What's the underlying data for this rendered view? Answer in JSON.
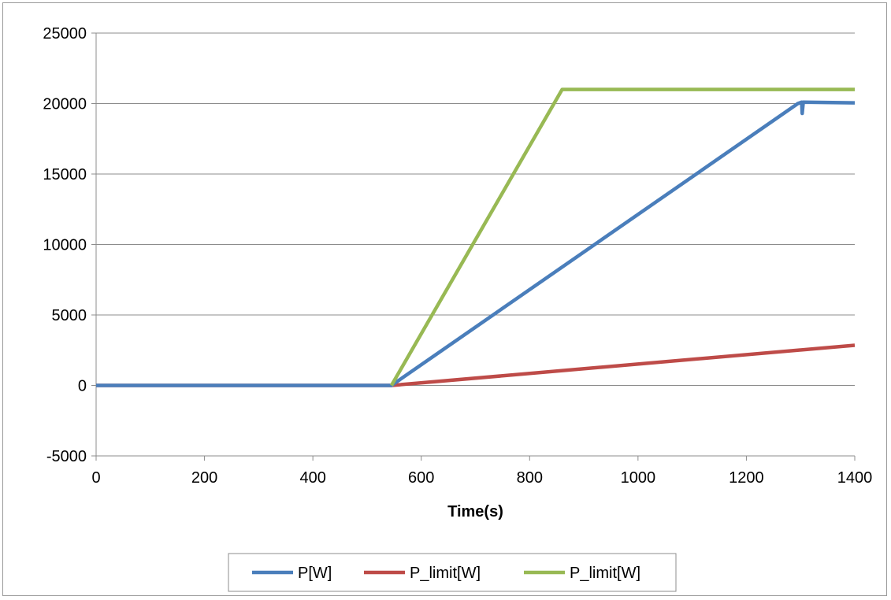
{
  "chart_data": {
    "type": "line",
    "title": "",
    "xlabel": "Time(s)",
    "ylabel": "",
    "xlim": [
      0,
      1400
    ],
    "ylim": [
      -5000,
      25000
    ],
    "x_ticks": [
      0,
      200,
      400,
      600,
      800,
      1000,
      1200,
      1400
    ],
    "y_ticks": [
      -5000,
      0,
      5000,
      10000,
      15000,
      20000,
      25000
    ],
    "x_tick_labels": [
      "0",
      "200",
      "400",
      "600",
      "800",
      "1000",
      "1200",
      "1400"
    ],
    "y_tick_labels": [
      "-5000",
      "0",
      "5000",
      "10000",
      "15000",
      "20000",
      "25000"
    ],
    "grid": "horizontal",
    "legend_position": "bottom",
    "series": [
      {
        "name": "P[W]",
        "color": "#4a7ebb",
        "x": [
          0,
          545,
          1295,
          1302,
          1303,
          1305,
          1400
        ],
        "y": [
          0,
          0,
          20000,
          20100,
          19300,
          20100,
          20050
        ]
      },
      {
        "name": "P_limit[W]",
        "color": "#be4b48",
        "x": [
          0,
          545,
          1400
        ],
        "y": [
          0,
          0,
          2850
        ]
      },
      {
        "name": "P_limit[W]",
        "color": "#98b954",
        "x": [
          545,
          860,
          1400
        ],
        "y": [
          0,
          21000,
          21000
        ]
      }
    ]
  }
}
